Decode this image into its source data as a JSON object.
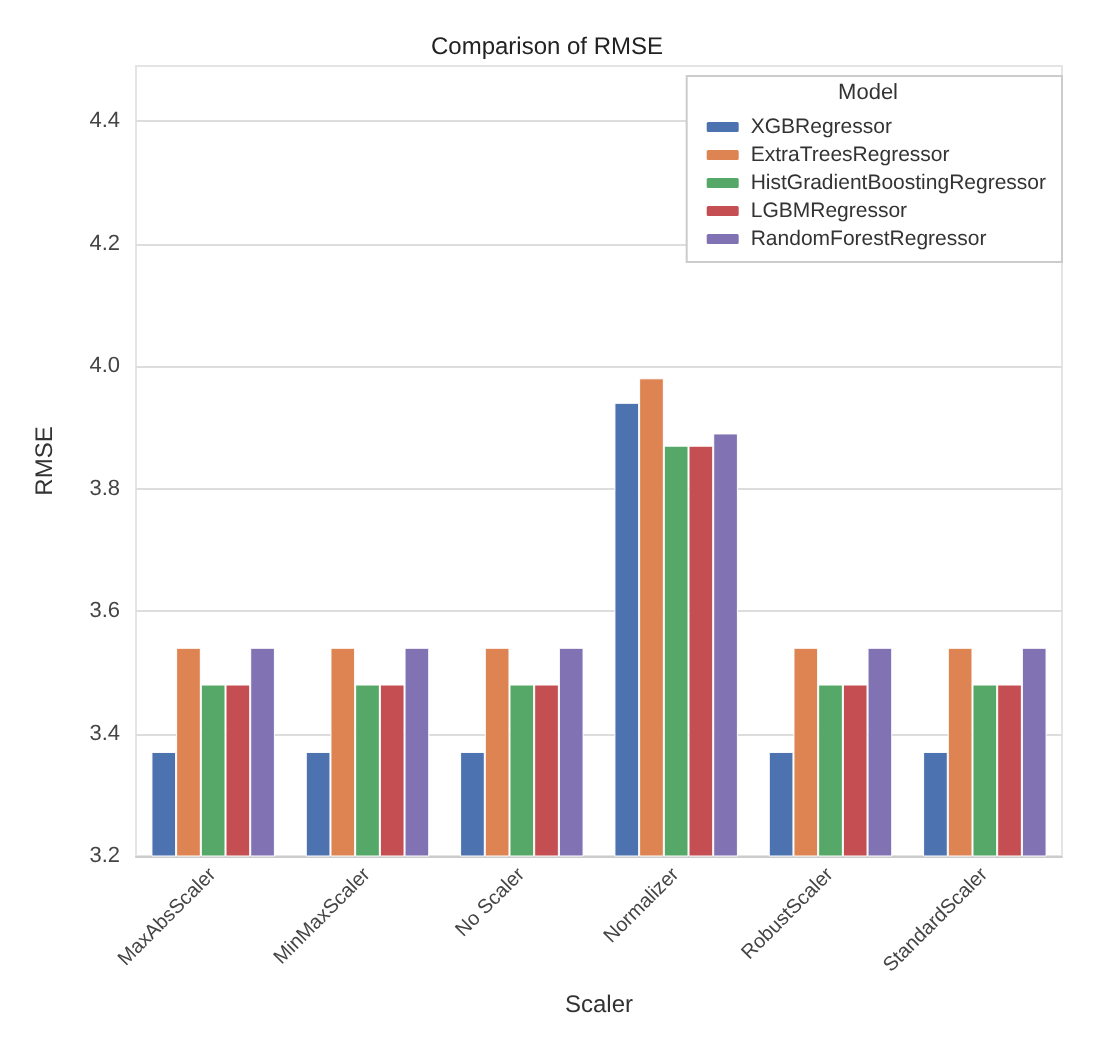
{
  "chart_data": {
    "type": "bar",
    "title": "Comparison of RMSE",
    "xlabel": "Scaler",
    "ylabel": "RMSE",
    "legend_title": "Model",
    "legend": "top right",
    "grid": "y",
    "categories": [
      "MaxAbsScaler",
      "MinMaxScaler",
      "No Scaler",
      "Normalizer",
      "RobustScaler",
      "StandardScaler"
    ],
    "ylim": [
      3.2,
      4.49
    ],
    "yticks": [
      3.2,
      3.4,
      3.6,
      3.8,
      {
        "value": 4,
        "label": "4.0"
      },
      4.2,
      4.4
    ],
    "series": [
      {
        "name": "XGBRegressor",
        "color": "#4c72b0",
        "values": [
          3.37,
          3.37,
          3.37,
          3.94,
          3.37,
          3.37
        ]
      },
      {
        "name": "ExtraTreesRegressor",
        "color": "#dd8452",
        "values": [
          3.54,
          3.54,
          3.54,
          3.98,
          3.54,
          3.54
        ]
      },
      {
        "name": "HistGradientBoostingRegressor",
        "color": "#55a868",
        "values": [
          3.48,
          3.48,
          3.48,
          3.87,
          3.48,
          3.48
        ]
      },
      {
        "name": "LGBMRegressor",
        "color": "#c44e52",
        "values": [
          3.48,
          3.48,
          3.48,
          3.87,
          3.48,
          3.48
        ]
      },
      {
        "name": "RandomForestRegressor",
        "color": "#8172b3",
        "values": [
          3.54,
          3.54,
          3.54,
          3.89,
          3.54,
          3.54
        ]
      }
    ]
  }
}
